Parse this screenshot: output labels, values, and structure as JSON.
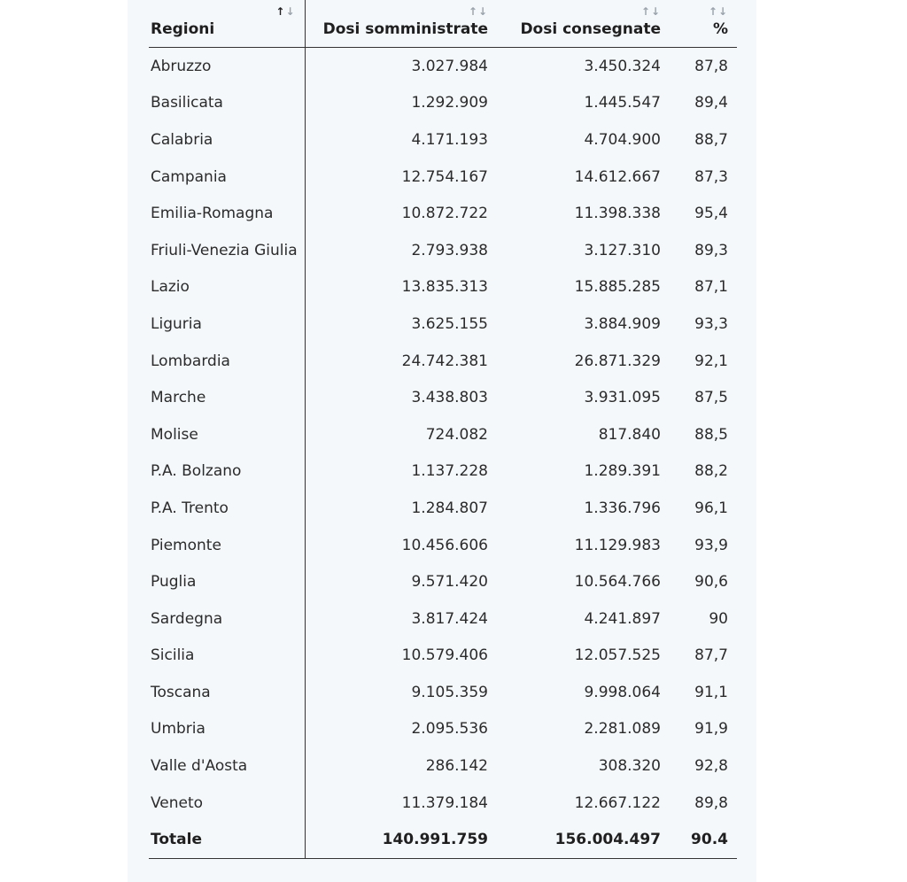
{
  "headers": {
    "region": "Regioni",
    "administered": "Dosi somministrate",
    "delivered": "Dosi consegnate",
    "percent": "%"
  },
  "rows": [
    {
      "region": "Abruzzo",
      "administered": "3.027.984",
      "delivered": "3.450.324",
      "percent": "87,8"
    },
    {
      "region": "Basilicata",
      "administered": "1.292.909",
      "delivered": "1.445.547",
      "percent": "89,4"
    },
    {
      "region": "Calabria",
      "administered": "4.171.193",
      "delivered": "4.704.900",
      "percent": "88,7"
    },
    {
      "region": "Campania",
      "administered": "12.754.167",
      "delivered": "14.612.667",
      "percent": "87,3"
    },
    {
      "region": "Emilia-Romagna",
      "administered": "10.872.722",
      "delivered": "11.398.338",
      "percent": "95,4"
    },
    {
      "region": "Friuli-Venezia Giulia",
      "administered": "2.793.938",
      "delivered": "3.127.310",
      "percent": "89,3"
    },
    {
      "region": "Lazio",
      "administered": "13.835.313",
      "delivered": "15.885.285",
      "percent": "87,1"
    },
    {
      "region": "Liguria",
      "administered": "3.625.155",
      "delivered": "3.884.909",
      "percent": "93,3"
    },
    {
      "region": "Lombardia",
      "administered": "24.742.381",
      "delivered": "26.871.329",
      "percent": "92,1"
    },
    {
      "region": "Marche",
      "administered": "3.438.803",
      "delivered": "3.931.095",
      "percent": "87,5"
    },
    {
      "region": "Molise",
      "administered": "724.082",
      "delivered": "817.840",
      "percent": "88,5"
    },
    {
      "region": "P.A. Bolzano",
      "administered": "1.137.228",
      "delivered": "1.289.391",
      "percent": "88,2"
    },
    {
      "region": "P.A. Trento",
      "administered": "1.284.807",
      "delivered": "1.336.796",
      "percent": "96,1"
    },
    {
      "region": "Piemonte",
      "administered": "10.456.606",
      "delivered": "11.129.983",
      "percent": "93,9"
    },
    {
      "region": "Puglia",
      "administered": "9.571.420",
      "delivered": "10.564.766",
      "percent": "90,6"
    },
    {
      "region": "Sardegna",
      "administered": "3.817.424",
      "delivered": "4.241.897",
      "percent": "90"
    },
    {
      "region": "Sicilia",
      "administered": "10.579.406",
      "delivered": "12.057.525",
      "percent": "87,7"
    },
    {
      "region": "Toscana",
      "administered": "9.105.359",
      "delivered": "9.998.064",
      "percent": "91,1"
    },
    {
      "region": "Umbria",
      "administered": "2.095.536",
      "delivered": "2.281.089",
      "percent": "91,9"
    },
    {
      "region": "Valle d'Aosta",
      "administered": "286.142",
      "delivered": "308.320",
      "percent": "92,8"
    },
    {
      "region": "Veneto",
      "administered": "11.379.184",
      "delivered": "12.667.122",
      "percent": "89,8"
    }
  ],
  "total": {
    "region": "Totale",
    "administered": "140.991.759",
    "delivered": "156.004.497",
    "percent": "90.4"
  },
  "icons": {
    "sort_up": "↑",
    "sort_down": "↓"
  },
  "colors": {
    "panel_background": "#f4f8fb",
    "text": "#2b2b2b",
    "sort_inactive": "#9aa3ab"
  }
}
